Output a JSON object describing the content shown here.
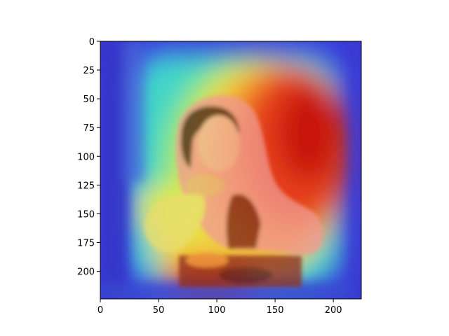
{
  "chart_data": {
    "type": "heatmap",
    "title": "",
    "xlabel": "",
    "ylabel": "",
    "xlim": [
      0,
      224
    ],
    "ylim": [
      224,
      0
    ],
    "x_ticks": [
      0,
      50,
      100,
      150,
      200
    ],
    "y_ticks": [
      0,
      25,
      50,
      75,
      100,
      125,
      150,
      175,
      200
    ],
    "colormap": "jet",
    "colors": {
      "low": "#2a2bd0",
      "mid": "#39e0c0",
      "warm": "#f2e04a",
      "high": "#d81e10",
      "skin": "#e7a89c",
      "dark": "#5b2418"
    },
    "overlay_content": "painting of a smiling girl in a headscarf overlaid with an attention heatmap"
  }
}
